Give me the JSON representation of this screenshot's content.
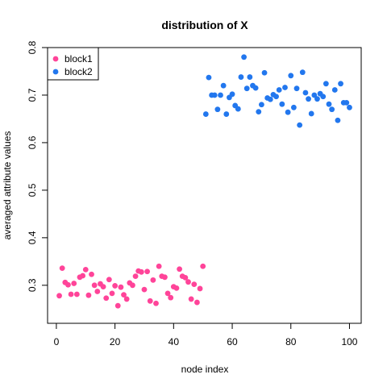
{
  "chart_data": {
    "type": "scatter",
    "title": "distribution of X",
    "xlabel": "node index",
    "ylabel": "averaged attribute values",
    "xlim": [
      -3,
      104
    ],
    "ylim": [
      0.22,
      0.8
    ],
    "x_ticks": [
      0,
      20,
      40,
      60,
      80,
      100
    ],
    "y_ticks": [
      0.3,
      0.4,
      0.5,
      0.6,
      0.7,
      0.8
    ],
    "legend_position": "top-left",
    "series": [
      {
        "name": "block1",
        "color": "#ff4499",
        "points": [
          [
            1,
            0.278
          ],
          [
            2,
            0.336
          ],
          [
            3,
            0.306
          ],
          [
            4,
            0.301
          ],
          [
            5,
            0.281
          ],
          [
            6,
            0.304
          ],
          [
            7,
            0.281
          ],
          [
            8,
            0.317
          ],
          [
            9,
            0.32
          ],
          [
            10,
            0.333
          ],
          [
            11,
            0.279
          ],
          [
            12,
            0.323
          ],
          [
            13,
            0.3
          ],
          [
            14,
            0.287
          ],
          [
            15,
            0.303
          ],
          [
            16,
            0.297
          ],
          [
            17,
            0.273
          ],
          [
            18,
            0.312
          ],
          [
            19,
            0.283
          ],
          [
            20,
            0.299
          ],
          [
            21,
            0.257
          ],
          [
            22,
            0.296
          ],
          [
            23,
            0.28
          ],
          [
            24,
            0.271
          ],
          [
            25,
            0.305
          ],
          [
            26,
            0.3
          ],
          [
            27,
            0.319
          ],
          [
            28,
            0.33
          ],
          [
            29,
            0.328
          ],
          [
            30,
            0.291
          ],
          [
            31,
            0.329
          ],
          [
            32,
            0.267
          ],
          [
            33,
            0.311
          ],
          [
            34,
            0.262
          ],
          [
            35,
            0.34
          ],
          [
            36,
            0.319
          ],
          [
            37,
            0.317
          ],
          [
            38,
            0.283
          ],
          [
            39,
            0.274
          ],
          [
            40,
            0.297
          ],
          [
            41,
            0.294
          ],
          [
            42,
            0.334
          ],
          [
            43,
            0.319
          ],
          [
            44,
            0.316
          ],
          [
            45,
            0.307
          ],
          [
            46,
            0.271
          ],
          [
            47,
            0.302
          ],
          [
            48,
            0.264
          ],
          [
            49,
            0.293
          ],
          [
            50,
            0.34
          ]
        ]
      },
      {
        "name": "block2",
        "color": "#2277ee",
        "points": [
          [
            51,
            0.66
          ],
          [
            52,
            0.737
          ],
          [
            53,
            0.7
          ],
          [
            54,
            0.7
          ],
          [
            55,
            0.67
          ],
          [
            56,
            0.7
          ],
          [
            57,
            0.72
          ],
          [
            58,
            0.66
          ],
          [
            59,
            0.695
          ],
          [
            60,
            0.702
          ],
          [
            61,
            0.678
          ],
          [
            62,
            0.671
          ],
          [
            63,
            0.738
          ],
          [
            64,
            0.78
          ],
          [
            65,
            0.714
          ],
          [
            66,
            0.738
          ],
          [
            67,
            0.72
          ],
          [
            68,
            0.715
          ],
          [
            69,
            0.665
          ],
          [
            70,
            0.68
          ],
          [
            71,
            0.747
          ],
          [
            72,
            0.694
          ],
          [
            73,
            0.691
          ],
          [
            74,
            0.701
          ],
          [
            75,
            0.697
          ],
          [
            76,
            0.711
          ],
          [
            77,
            0.681
          ],
          [
            78,
            0.716
          ],
          [
            79,
            0.664
          ],
          [
            80,
            0.741
          ],
          [
            81,
            0.674
          ],
          [
            82,
            0.714
          ],
          [
            83,
            0.637
          ],
          [
            84,
            0.748
          ],
          [
            85,
            0.705
          ],
          [
            86,
            0.692
          ],
          [
            87,
            0.661
          ],
          [
            88,
            0.7
          ],
          [
            89,
            0.692
          ],
          [
            90,
            0.703
          ],
          [
            91,
            0.697
          ],
          [
            92,
            0.724
          ],
          [
            93,
            0.681
          ],
          [
            94,
            0.67
          ],
          [
            95,
            0.711
          ],
          [
            96,
            0.647
          ],
          [
            97,
            0.724
          ],
          [
            98,
            0.684
          ],
          [
            99,
            0.684
          ],
          [
            100,
            0.674
          ]
        ]
      }
    ]
  }
}
